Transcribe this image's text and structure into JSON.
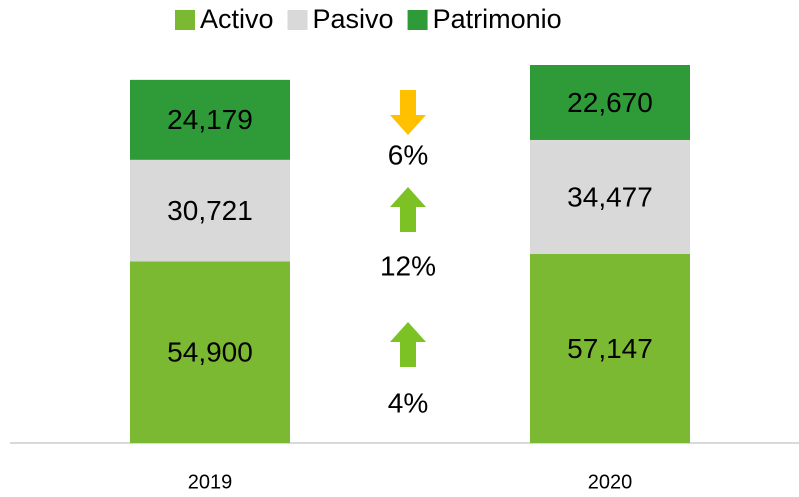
{
  "chart_data": {
    "type": "stacked_bar",
    "categories": [
      "2019",
      "2020"
    ],
    "series": [
      {
        "name": "Activo",
        "color": "#7cb932",
        "values": [
          54900,
          57147
        ],
        "value_labels": [
          "54,900",
          "57,147"
        ]
      },
      {
        "name": "Pasivo",
        "color": "#d9d9d9",
        "values": [
          30721,
          34477
        ],
        "value_labels": [
          "30,721",
          "34,477"
        ]
      },
      {
        "name": "Patrimonio",
        "color": "#2e9b38",
        "values": [
          24179,
          22670
        ],
        "value_labels": [
          "24,179",
          "22,670"
        ]
      }
    ],
    "legend": "top",
    "annotations": [
      {
        "text": "6%",
        "direction": "down",
        "color": "#ffc000"
      },
      {
        "text": "12%",
        "direction": "up",
        "color": "#7cc225"
      },
      {
        "text": "4%",
        "direction": "up",
        "color": "#7cc225"
      }
    ]
  }
}
